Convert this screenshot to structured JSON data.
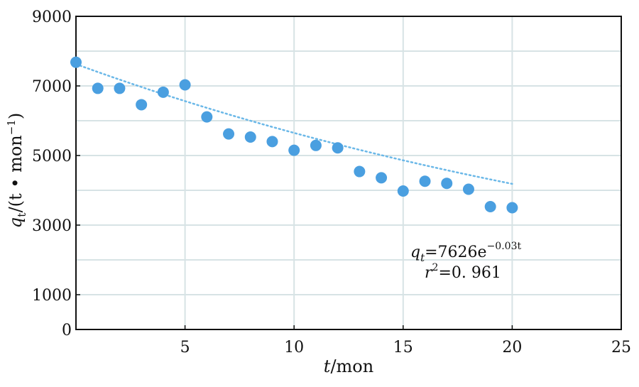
{
  "chart_data": {
    "type": "scatter",
    "xlabel": {
      "var": "t",
      "unit": "/mon"
    },
    "ylabel": {
      "var": "q",
      "sub": "t",
      "unit_open": "/(t • mon",
      "unit_sup": "−1",
      "unit_close": ")"
    },
    "xlim": [
      0,
      25
    ],
    "ylim": [
      0,
      9000
    ],
    "x_ticks": [
      5,
      10,
      15,
      20,
      25
    ],
    "y_ticks": [
      0,
      1000,
      3000,
      5000,
      7000,
      9000
    ],
    "x_grid": [
      5,
      10,
      15,
      20
    ],
    "y_grid": [
      1000,
      2000,
      3000,
      4000,
      5000,
      6000,
      7000,
      8000
    ],
    "grid": true,
    "point_color": "#4a9fe0",
    "trend_color": "#6bb8e8",
    "grid_color": "#d7e3e5",
    "series": [
      {
        "x": [
          0,
          1,
          2,
          3,
          4,
          5,
          6,
          7,
          8,
          9,
          10,
          11,
          12,
          13,
          14,
          15,
          16,
          17,
          18,
          19,
          20
        ],
        "y": [
          7680,
          6930,
          6930,
          6460,
          6820,
          7030,
          6110,
          5620,
          5530,
          5400,
          5150,
          5290,
          5220,
          4540,
          4360,
          3980,
          4260,
          4200,
          4030,
          3530,
          3500
        ]
      }
    ],
    "trendline": {
      "type": "exponential",
      "a": 7626,
      "b": -0.03,
      "x_range": [
        0,
        20
      ]
    },
    "annotation": {
      "eq_lhs": "q",
      "eq_lhs_sub": "t",
      "eq_rhs": "=7626e",
      "eq_exp": "−0.03t",
      "r2_lhs": "r",
      "r2_sup": "2",
      "r2_rhs": "=0. 961"
    }
  }
}
